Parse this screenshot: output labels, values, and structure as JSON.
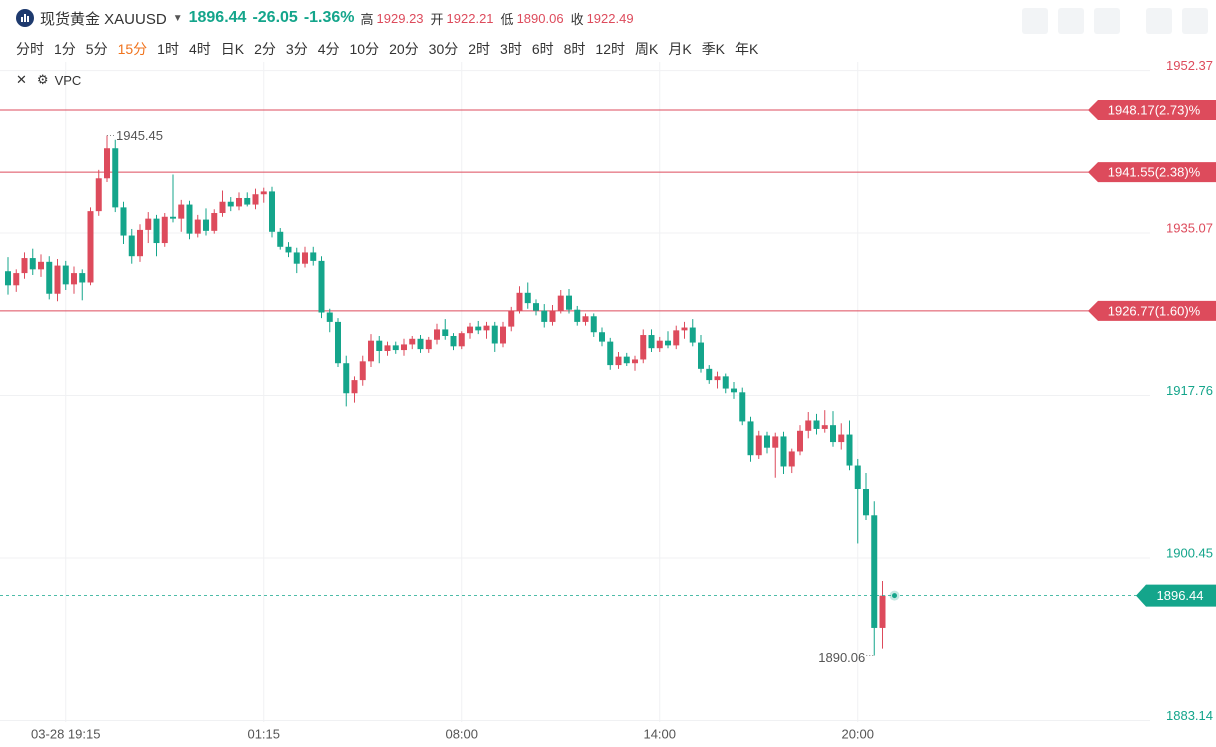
{
  "header": {
    "title": "现货黄金 XAUUSD",
    "price": 1896.44,
    "change": -26.05,
    "change_pct": "-1.36%",
    "stats": [
      {
        "label": "高",
        "value": 1929.23
      },
      {
        "label": "开",
        "value": 1922.21
      },
      {
        "label": "低",
        "value": 1890.06
      },
      {
        "label": "收",
        "value": 1922.49
      }
    ]
  },
  "toolbar": {
    "intervals": [
      "分时",
      "1分",
      "5分",
      "15分",
      "1时",
      "4时",
      "日K",
      "2分",
      "3分",
      "4分",
      "10分",
      "20分",
      "30分",
      "2时",
      "3时",
      "6时",
      "8时",
      "12时",
      "周K",
      "月K",
      "季K",
      "年K"
    ],
    "active_interval": 3
  },
  "indicator": "VPC",
  "chart_data": {
    "type": "candlestick",
    "up_color": "#dd4b5c",
    "down_color": "#14a58b",
    "x": [
      null,
      null,
      null,
      null,
      null,
      null,
      null,
      "03-28 19:15",
      null,
      null,
      null,
      null,
      null,
      null,
      null,
      null,
      null,
      null,
      null,
      null,
      null,
      null,
      null,
      null,
      null,
      null,
      null,
      null,
      null,
      null,
      null,
      "01:15",
      null,
      null,
      null,
      null,
      null,
      null,
      null,
      null,
      null,
      null,
      null,
      null,
      null,
      null,
      null,
      null,
      null,
      null,
      null,
      null,
      null,
      null,
      null,
      "08:00",
      null,
      null,
      null,
      null,
      null,
      null,
      null,
      null,
      null,
      null,
      null,
      null,
      null,
      null,
      null,
      null,
      null,
      null,
      null,
      null,
      null,
      null,
      null,
      "14:00",
      null,
      null,
      null,
      null,
      null,
      null,
      null,
      null,
      null,
      null,
      null,
      null,
      null,
      null,
      null,
      null,
      null,
      null,
      null,
      null,
      null,
      null,
      null,
      "20:00",
      null,
      null,
      null
    ],
    "open": [
      1931.0,
      1929.5,
      1930.8,
      1932.4,
      1931.2,
      1932.0,
      1928.6,
      1931.6,
      1929.6,
      1930.8,
      1929.8,
      1937.4,
      1940.9,
      1944.1,
      1937.8,
      1934.8,
      1932.6,
      1935.4,
      1936.6,
      1934.0,
      1936.8,
      1936.6,
      1938.1,
      1935.0,
      1936.5,
      1935.3,
      1937.2,
      1938.4,
      1937.9,
      1938.8,
      1938.1,
      1939.2,
      1939.5,
      1935.2,
      1933.6,
      1933.0,
      1931.8,
      1933.0,
      1932.1,
      1926.6,
      1925.6,
      1921.2,
      1918.0,
      1919.4,
      1921.4,
      1923.6,
      1922.5,
      1923.1,
      1922.6,
      1923.2,
      1923.8,
      1922.7,
      1923.7,
      1924.8,
      1924.1,
      1923.0,
      1924.4,
      1925.1,
      1924.7,
      1925.2,
      1923.3,
      1925.1,
      1926.8,
      1928.7,
      1927.6,
      1926.8,
      1925.6,
      1926.8,
      1928.4,
      1926.9,
      1925.6,
      1926.2,
      1924.5,
      1923.5,
      1921.0,
      1921.9,
      1921.2,
      1921.6,
      1924.2,
      1922.8,
      1923.6,
      1923.1,
      1924.7,
      1925.0,
      1923.4,
      1920.6,
      1919.4,
      1919.8,
      1918.5,
      1918.1,
      1915.0,
      1911.4,
      1913.5,
      1912.2,
      1913.4,
      1910.2,
      1911.8,
      1914.0,
      1915.1,
      1914.2,
      1914.6,
      1912.8,
      1913.6,
      1910.3,
      1907.8,
      1905.0,
      1893.0
    ],
    "high": [
      1932.5,
      1931.2,
      1933.0,
      1933.4,
      1932.8,
      1932.6,
      1932.3,
      1932.1,
      1931.5,
      1931.2,
      1937.8,
      1941.8,
      1945.45,
      1945.0,
      1938.4,
      1935.5,
      1936.0,
      1937.3,
      1937.0,
      1937.2,
      1941.3,
      1938.6,
      1938.5,
      1937.0,
      1937.7,
      1937.6,
      1939.6,
      1938.9,
      1939.4,
      1939.4,
      1939.8,
      1939.9,
      1940.0,
      1935.6,
      1934.1,
      1933.5,
      1933.6,
      1933.6,
      1932.6,
      1927.0,
      1926.0,
      1922.0,
      1919.8,
      1922.0,
      1924.3,
      1924.1,
      1923.5,
      1923.5,
      1923.8,
      1924.1,
      1924.2,
      1924.0,
      1925.4,
      1925.9,
      1924.4,
      1924.6,
      1925.5,
      1925.7,
      1925.6,
      1925.6,
      1925.6,
      1927.2,
      1929.4,
      1929.8,
      1928.0,
      1927.5,
      1927.4,
      1929.0,
      1929.1,
      1927.3,
      1926.5,
      1926.5,
      1925.0,
      1923.9,
      1922.4,
      1922.3,
      1922.0,
      1924.8,
      1924.8,
      1924.0,
      1924.6,
      1925.2,
      1925.6,
      1925.9,
      1924.2,
      1921.0,
      1920.3,
      1920.1,
      1919.2,
      1918.6,
      1915.5,
      1914.0,
      1913.9,
      1913.8,
      1913.9,
      1912.1,
      1914.6,
      1916.0,
      1915.8,
      1916.2,
      1916.1,
      1914.8,
      1915.1,
      1911.0,
      1909.5,
      1906.5,
      1898.0
    ],
    "low": [
      1928.5,
      1928.8,
      1930.2,
      1930.6,
      1930.4,
      1928.0,
      1927.8,
      1929.0,
      1928.6,
      1927.9,
      1929.5,
      1936.9,
      1940.5,
      1937.3,
      1933.9,
      1931.8,
      1932.0,
      1934.0,
      1932.6,
      1933.6,
      1936.2,
      1935.2,
      1934.4,
      1934.6,
      1934.8,
      1935.0,
      1936.8,
      1937.4,
      1937.5,
      1937.9,
      1937.6,
      1938.3,
      1934.6,
      1933.3,
      1932.5,
      1930.8,
      1931.4,
      1931.6,
      1926.0,
      1924.5,
      1920.8,
      1916.6,
      1917.0,
      1918.8,
      1920.8,
      1921.2,
      1922.0,
      1922.2,
      1922.0,
      1922.7,
      1922.3,
      1922.3,
      1923.2,
      1923.7,
      1922.6,
      1922.7,
      1923.8,
      1924.3,
      1923.8,
      1922.4,
      1922.9,
      1924.6,
      1926.5,
      1927.0,
      1926.3,
      1925.0,
      1925.2,
      1926.5,
      1926.5,
      1925.2,
      1925.2,
      1924.0,
      1923.0,
      1920.5,
      1920.6,
      1920.9,
      1920.4,
      1921.2,
      1922.4,
      1922.4,
      1922.8,
      1922.7,
      1923.8,
      1923.0,
      1920.2,
      1919.0,
      1918.5,
      1918.0,
      1917.4,
      1914.6,
      1910.7,
      1911.0,
      1911.6,
      1909.0,
      1909.4,
      1909.5,
      1911.4,
      1913.2,
      1913.6,
      1913.8,
      1912.3,
      1912.0,
      1909.8,
      1902.0,
      1904.5,
      1890.06,
      1890.8
    ],
    "close": [
      1929.5,
      1930.8,
      1932.4,
      1931.2,
      1932.0,
      1928.6,
      1931.6,
      1929.6,
      1930.8,
      1929.8,
      1937.4,
      1940.9,
      1944.1,
      1937.8,
      1934.8,
      1932.6,
      1935.4,
      1936.6,
      1934.0,
      1936.8,
      1936.6,
      1938.1,
      1935.0,
      1936.5,
      1935.3,
      1937.2,
      1938.4,
      1937.9,
      1938.8,
      1938.1,
      1939.2,
      1939.5,
      1935.2,
      1933.6,
      1933.0,
      1931.8,
      1933.0,
      1932.1,
      1926.6,
      1925.6,
      1921.2,
      1918.0,
      1919.4,
      1921.4,
      1923.6,
      1922.5,
      1923.1,
      1922.6,
      1923.2,
      1923.8,
      1922.7,
      1923.7,
      1924.8,
      1924.1,
      1923.0,
      1924.4,
      1925.1,
      1924.7,
      1925.2,
      1923.3,
      1925.1,
      1926.8,
      1928.7,
      1927.6,
      1926.8,
      1925.6,
      1926.8,
      1928.4,
      1926.9,
      1925.6,
      1926.2,
      1924.5,
      1923.5,
      1921.0,
      1921.9,
      1921.2,
      1921.6,
      1924.2,
      1922.8,
      1923.6,
      1923.1,
      1924.7,
      1925.0,
      1923.4,
      1920.6,
      1919.4,
      1919.8,
      1918.5,
      1918.1,
      1915.0,
      1911.4,
      1913.5,
      1912.2,
      1913.4,
      1910.2,
      1911.8,
      1914.0,
      1915.1,
      1914.2,
      1914.6,
      1912.8,
      1913.6,
      1910.3,
      1907.8,
      1905.0,
      1893.0,
      1896.44
    ],
    "ylim": [
      1883.14,
      1952.37
    ],
    "yticks": [
      1883.14,
      1900.45,
      1917.76,
      1935.07,
      1952.37
    ],
    "price_lines": [
      {
        "value": 1948.17,
        "label": "1948.17(2.73)%"
      },
      {
        "value": 1941.55,
        "label": "1941.55(2.38)%"
      },
      {
        "value": 1926.77,
        "label": "1926.77(1.60)%"
      }
    ],
    "last_price": 1896.44,
    "grid": true
  }
}
